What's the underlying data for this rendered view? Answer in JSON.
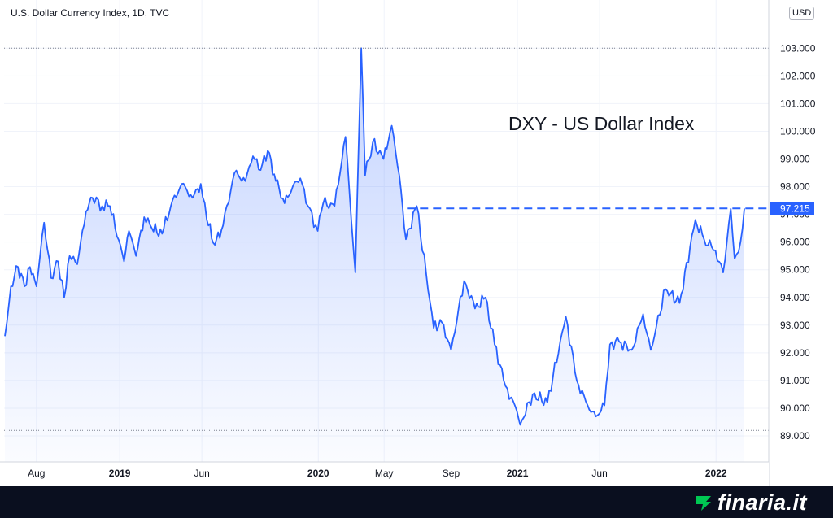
{
  "header": {
    "symbol_label": "U.S. Dollar Currency Index, 1D, TVC"
  },
  "annotation": "DXY - US Dollar Index",
  "currency_badge": "USD",
  "brand": {
    "name": "finaria.it",
    "accent_color": "#00c853"
  },
  "colors": {
    "line": "#2962ff",
    "grid": "#f0f3fa",
    "dotted": "#7e8391",
    "last_label_bg": "#2962ff"
  },
  "chart_data": {
    "type": "area",
    "title": "U.S. Dollar Currency Index, 1D, TVC",
    "annotation": "DXY - US Dollar Index",
    "unit": "USD",
    "ylim": [
      88,
      104
    ],
    "y_ticks": [
      "89.000",
      "90.000",
      "91.000",
      "92.000",
      "93.000",
      "94.000",
      "95.000",
      "96.000",
      "97.000",
      "98.000",
      "99.000",
      "100.000",
      "101.000",
      "102.000",
      "103.000"
    ],
    "x_ticks": [
      {
        "label": "Aug",
        "t": "2018-08-01",
        "bold": false
      },
      {
        "label": "2019",
        "t": "2019-01-01",
        "bold": true
      },
      {
        "label": "Jun",
        "t": "2019-06-01",
        "bold": false
      },
      {
        "label": "2020",
        "t": "2020-01-01",
        "bold": true
      },
      {
        "label": "May",
        "t": "2020-05-01",
        "bold": false
      },
      {
        "label": "Sep",
        "t": "2020-09-01",
        "bold": false
      },
      {
        "label": "2021",
        "t": "2021-01-01",
        "bold": true
      },
      {
        "label": "Jun",
        "t": "2021-06-01",
        "bold": false
      },
      {
        "label": "2022",
        "t": "2022-01-01",
        "bold": true
      }
    ],
    "x_range": [
      "2018-06-04",
      "2022-02-22"
    ],
    "last_value": "97.215",
    "reference_lines": [
      {
        "value": 103.0,
        "label": "103.000",
        "style": "dotted"
      },
      {
        "value": 89.2,
        "style": "dotted"
      },
      {
        "value": 97.215,
        "label": "97.215",
        "style": "dashed",
        "from": "2020-06-12"
      }
    ],
    "grid": true,
    "series": [
      {
        "values": [
          [
            "2018-06-04",
            92.6
          ],
          [
            "2018-06-15",
            94.4
          ],
          [
            "2018-06-28",
            95.1
          ],
          [
            "2018-07-10",
            94.4
          ],
          [
            "2018-07-20",
            95.1
          ],
          [
            "2018-08-01",
            94.4
          ],
          [
            "2018-08-15",
            96.7
          ],
          [
            "2018-08-28",
            94.7
          ],
          [
            "2018-09-10",
            95.3
          ],
          [
            "2018-09-21",
            94.0
          ],
          [
            "2018-10-01",
            95.5
          ],
          [
            "2018-10-15",
            95.2
          ],
          [
            "2018-10-31",
            97.1
          ],
          [
            "2018-11-12",
            97.6
          ],
          [
            "2018-11-30",
            97.3
          ],
          [
            "2018-12-14",
            97.3
          ],
          [
            "2019-01-09",
            95.3
          ],
          [
            "2019-01-18",
            96.4
          ],
          [
            "2019-01-31",
            95.5
          ],
          [
            "2019-02-15",
            96.9
          ],
          [
            "2019-03-01",
            96.5
          ],
          [
            "2019-03-20",
            96.3
          ],
          [
            "2019-04-05",
            97.3
          ],
          [
            "2019-04-25",
            98.1
          ],
          [
            "2019-05-15",
            97.6
          ],
          [
            "2019-05-30",
            98.1
          ],
          [
            "2019-06-10",
            96.8
          ],
          [
            "2019-06-25",
            95.9
          ],
          [
            "2019-07-10",
            96.6
          ],
          [
            "2019-07-31",
            98.5
          ],
          [
            "2019-08-20",
            98.2
          ],
          [
            "2019-09-03",
            99.1
          ],
          [
            "2019-09-17",
            98.6
          ],
          [
            "2019-09-30",
            99.3
          ],
          [
            "2019-10-15",
            98.2
          ],
          [
            "2019-10-31",
            97.4
          ],
          [
            "2019-11-15",
            98.0
          ],
          [
            "2019-11-29",
            98.3
          ],
          [
            "2019-12-13",
            97.3
          ],
          [
            "2019-12-31",
            96.4
          ],
          [
            "2020-01-10",
            97.4
          ],
          [
            "2020-01-31",
            97.3
          ],
          [
            "2020-02-20",
            99.8
          ],
          [
            "2020-03-09",
            94.9
          ],
          [
            "2020-03-20",
            103.0
          ],
          [
            "2020-03-27",
            98.4
          ],
          [
            "2020-04-10",
            99.6
          ],
          [
            "2020-04-30",
            99.0
          ],
          [
            "2020-05-15",
            100.2
          ],
          [
            "2020-05-29",
            98.4
          ],
          [
            "2020-06-10",
            96.1
          ],
          [
            "2020-06-30",
            97.3
          ],
          [
            "2020-07-31",
            92.9
          ],
          [
            "2020-08-15",
            93.1
          ],
          [
            "2020-09-01",
            92.1
          ],
          [
            "2020-09-25",
            94.6
          ],
          [
            "2020-10-15",
            93.6
          ],
          [
            "2020-11-03",
            94.0
          ],
          [
            "2020-11-20",
            92.3
          ],
          [
            "2020-12-10",
            90.8
          ],
          [
            "2020-12-31",
            89.9
          ],
          [
            "2021-01-06",
            89.4
          ],
          [
            "2021-01-29",
            90.5
          ],
          [
            "2021-02-25",
            90.2
          ],
          [
            "2021-03-31",
            93.3
          ],
          [
            "2021-04-20",
            91.0
          ],
          [
            "2021-05-10",
            90.1
          ],
          [
            "2021-05-25",
            89.7
          ],
          [
            "2021-06-10",
            90.1
          ],
          [
            "2021-06-20",
            92.3
          ],
          [
            "2021-07-07",
            92.4
          ],
          [
            "2021-07-30",
            92.1
          ],
          [
            "2021-08-20",
            93.4
          ],
          [
            "2021-09-03",
            92.1
          ],
          [
            "2021-09-30",
            94.3
          ],
          [
            "2021-10-26",
            93.8
          ],
          [
            "2021-11-24",
            96.8
          ],
          [
            "2021-12-10",
            96.1
          ],
          [
            "2021-12-31",
            95.7
          ],
          [
            "2022-01-14",
            94.9
          ],
          [
            "2022-01-28",
            97.2
          ],
          [
            "2022-02-04",
            95.4
          ],
          [
            "2022-02-15",
            96.0
          ],
          [
            "2022-02-22",
            97.215
          ]
        ]
      }
    ]
  }
}
